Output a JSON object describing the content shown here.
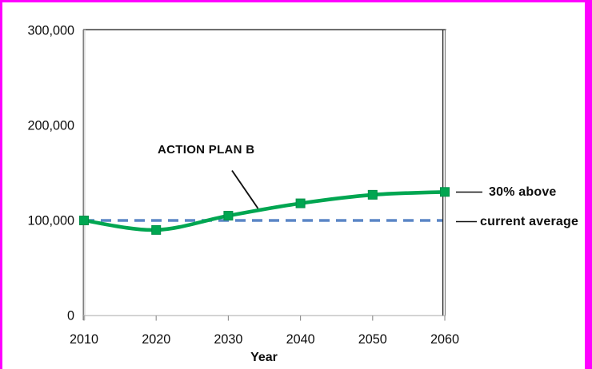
{
  "frame": {
    "border_color": "#ff00ff",
    "background": "#ffffff"
  },
  "chart_data": {
    "type": "line",
    "title": "",
    "xlabel": "Year",
    "ylabel": "",
    "xlim": [
      2010,
      2060
    ],
    "ylim": [
      0,
      300000
    ],
    "grid": false,
    "legend_position": "none",
    "x": [
      2010,
      2020,
      2030,
      2040,
      2050,
      2060
    ],
    "x_tick_labels": [
      "2010",
      "2020",
      "2030",
      "2040",
      "2050",
      "2060"
    ],
    "y_ticks": [
      0,
      100000,
      200000,
      300000
    ],
    "y_tick_labels": [
      "0",
      "100,000",
      "200,000",
      "300,000"
    ],
    "series": [
      {
        "name": "ACTION PLAN B",
        "type": "smooth-line",
        "color": "#00a651",
        "marker": "square",
        "values": [
          100000,
          90000,
          105000,
          118000,
          127000,
          130000
        ]
      },
      {
        "name": "current average",
        "type": "dashed-line",
        "color": "#5b86c6",
        "values": [
          100000,
          100000,
          100000,
          100000,
          100000,
          100000
        ]
      }
    ],
    "annotations": {
      "plan_label": "ACTION PLAN B",
      "above_label": "30% above",
      "average_label": "current average"
    }
  }
}
